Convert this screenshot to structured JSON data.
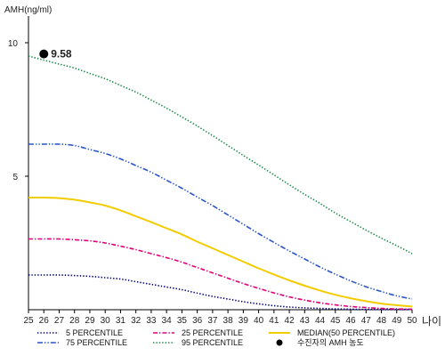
{
  "chart_data": {
    "type": "line",
    "ylabel": "AMH(ng/ml)",
    "xlabel": "나이",
    "x": [
      25,
      26,
      27,
      28,
      29,
      30,
      31,
      32,
      33,
      34,
      35,
      36,
      37,
      38,
      39,
      40,
      41,
      42,
      43,
      44,
      45,
      46,
      47,
      48,
      49,
      50
    ],
    "xlim": [
      25,
      50
    ],
    "ylim": [
      0,
      11
    ],
    "yticks": [
      5,
      10
    ],
    "grid": false,
    "legend_placement": "bottom",
    "series": [
      {
        "name": "5 PERCENTILE",
        "color": "#000080",
        "style": "dotted",
        "values": [
          1.3,
          1.3,
          1.3,
          1.28,
          1.25,
          1.2,
          1.15,
          1.05,
          0.95,
          0.85,
          0.75,
          0.62,
          0.5,
          0.4,
          0.3,
          0.22,
          0.15,
          0.1,
          0.07,
          0.05,
          0.03,
          0.02,
          0.01,
          0.01,
          0.01,
          0.01
        ]
      },
      {
        "name": "25 PERCENTILE",
        "color": "#e0007a",
        "style": "dashdot",
        "values": [
          2.65,
          2.65,
          2.65,
          2.62,
          2.58,
          2.5,
          2.38,
          2.25,
          2.1,
          1.95,
          1.78,
          1.58,
          1.38,
          1.18,
          0.98,
          0.8,
          0.63,
          0.48,
          0.36,
          0.26,
          0.18,
          0.12,
          0.08,
          0.05,
          0.03,
          0.02
        ]
      },
      {
        "name": "MEDIAN(50 PERCENTILE)",
        "color": "#f2cc00",
        "style": "solid",
        "values": [
          4.2,
          4.2,
          4.18,
          4.12,
          4.02,
          3.9,
          3.72,
          3.5,
          3.28,
          3.05,
          2.82,
          2.55,
          2.3,
          2.05,
          1.8,
          1.55,
          1.32,
          1.1,
          0.9,
          0.72,
          0.56,
          0.43,
          0.32,
          0.23,
          0.17,
          0.12
        ]
      },
      {
        "name": "75 PERCENTILE",
        "color": "#2a55c8",
        "style": "dashdotdot",
        "values": [
          6.2,
          6.2,
          6.2,
          6.15,
          6.0,
          5.85,
          5.65,
          5.4,
          5.15,
          4.85,
          4.55,
          4.22,
          3.9,
          3.55,
          3.2,
          2.85,
          2.52,
          2.2,
          1.9,
          1.6,
          1.33,
          1.08,
          0.86,
          0.68,
          0.52,
          0.4
        ]
      },
      {
        "name": "95 PERCENTILE",
        "color": "#1a8a4a",
        "style": "dotted",
        "values": [
          9.5,
          9.35,
          9.2,
          9.05,
          8.85,
          8.65,
          8.4,
          8.15,
          7.85,
          7.55,
          7.22,
          6.88,
          6.52,
          6.15,
          5.78,
          5.42,
          5.05,
          4.68,
          4.32,
          3.98,
          3.62,
          3.3,
          2.98,
          2.68,
          2.4,
          2.1
        ]
      }
    ],
    "annotation": {
      "label": "수진자의 AMH 농도",
      "x": 26,
      "y": 9.58,
      "value_text": "9.58",
      "color": "#000000"
    }
  }
}
